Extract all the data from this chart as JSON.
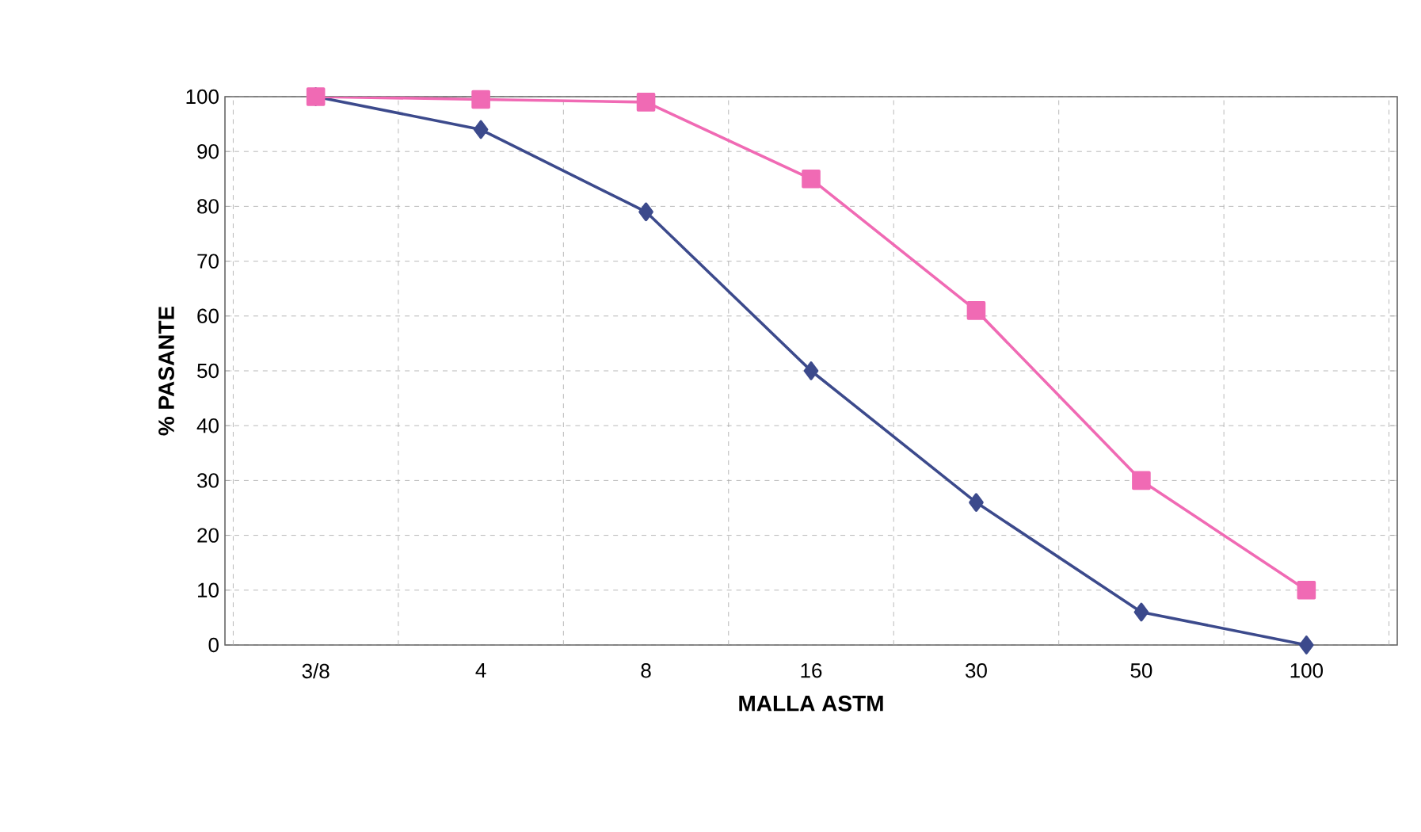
{
  "chart_data": {
    "type": "line",
    "xlabel": "MALLA ASTM",
    "ylabel": "% PASANTE",
    "categories": [
      "3/8",
      "4",
      "8",
      "16",
      "30",
      "50",
      "100"
    ],
    "ylim": [
      0,
      100
    ],
    "yticks": [
      0,
      10,
      20,
      30,
      40,
      50,
      60,
      70,
      80,
      90,
      100
    ],
    "grid": true,
    "series": [
      {
        "color": "#3c4a8c",
        "marker": "diamond",
        "values": [
          100,
          94,
          79,
          50,
          26,
          6,
          0
        ]
      },
      {
        "color": "#f06ab4",
        "marker": "square",
        "values": [
          100,
          99.5,
          99,
          85,
          61,
          30,
          10
        ]
      }
    ]
  }
}
